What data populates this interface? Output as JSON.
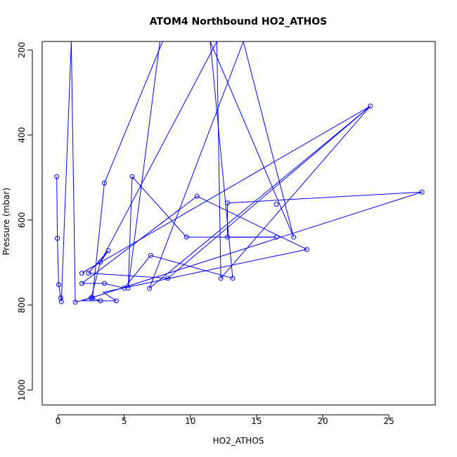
{
  "chart_data": {
    "type": "line",
    "title": "ATOM4 Northbound HO2_ATHOS",
    "xlabel": "HO2_ATHOS",
    "ylabel": "Pressure (mbar)",
    "xlim": [
      -1.2,
      28.5
    ],
    "ylim_top": 180,
    "ylim_bottom": 1035,
    "y_reversed": true,
    "xticks": [
      0,
      5,
      10,
      15,
      20,
      25
    ],
    "yticks": [
      200,
      400,
      600,
      800,
      1000
    ],
    "color": "#0000ff",
    "marker": "open-circle",
    "series": [
      {
        "points": [
          [
            -0.1,
            498
          ],
          [
            -0.05,
            643
          ],
          [
            0.05,
            752
          ],
          [
            0.2,
            783
          ],
          [
            0.25,
            792
          ],
          [
            1.0,
            180
          ],
          [
            1.3,
            793
          ],
          [
            2.5,
            783
          ],
          [
            2.6,
            783
          ],
          [
            3.5,
            513
          ],
          [
            7.9,
            180
          ],
          [
            7.7,
            180
          ],
          [
            5.3,
            760
          ],
          [
            5.6,
            498
          ],
          [
            9.7,
            640
          ],
          [
            16.5,
            640
          ],
          [
            12.8,
            640
          ],
          [
            12.8,
            560
          ],
          [
            27.5,
            534
          ],
          [
            1.8,
            790
          ],
          [
            3.2,
            790
          ],
          [
            4.4,
            790
          ],
          [
            3.4,
            770
          ],
          [
            18.8,
            669
          ],
          [
            10.5,
            544
          ],
          [
            1.8,
            749
          ],
          [
            3.5,
            749
          ],
          [
            5.0,
            760
          ],
          [
            7.0,
            683
          ],
          [
            13.2,
            737
          ],
          [
            11.5,
            180
          ],
          [
            17.8,
            640
          ],
          [
            14.0,
            180
          ],
          [
            6.9,
            761
          ],
          [
            23.6,
            332
          ],
          [
            12.3,
            737
          ],
          [
            12.0,
            180
          ],
          [
            3.2,
            699
          ],
          [
            3.8,
            672
          ],
          [
            2.3,
            725
          ],
          [
            8.3,
            737
          ],
          [
            23.6,
            332
          ],
          [
            1.8,
            725
          ],
          [
            3.2,
            699
          ],
          [
            2.5,
            783
          ],
          [
            3.2,
            790
          ]
        ],
        "marker_points": [
          [
            -0.1,
            498
          ],
          [
            -0.05,
            643
          ],
          [
            0.05,
            752
          ],
          [
            0.2,
            783
          ],
          [
            0.25,
            792
          ],
          [
            1.3,
            793
          ],
          [
            2.5,
            783
          ],
          [
            2.6,
            783
          ],
          [
            3.5,
            513
          ],
          [
            5.3,
            760
          ],
          [
            5.6,
            498
          ],
          [
            9.7,
            640
          ],
          [
            16.5,
            640
          ],
          [
            12.8,
            640
          ],
          [
            12.8,
            560
          ],
          [
            27.5,
            534
          ],
          [
            3.2,
            790
          ],
          [
            4.4,
            790
          ],
          [
            18.8,
            669
          ],
          [
            10.5,
            544
          ],
          [
            1.8,
            749
          ],
          [
            3.5,
            749
          ],
          [
            5.0,
            760
          ],
          [
            7.0,
            683
          ],
          [
            13.2,
            737
          ],
          [
            17.8,
            640
          ],
          [
            6.9,
            761
          ],
          [
            23.6,
            332
          ],
          [
            12.3,
            737
          ],
          [
            3.2,
            699
          ],
          [
            3.8,
            672
          ],
          [
            2.3,
            725
          ],
          [
            8.3,
            737
          ],
          [
            1.8,
            725
          ],
          [
            16.5,
            563
          ]
        ]
      }
    ]
  }
}
